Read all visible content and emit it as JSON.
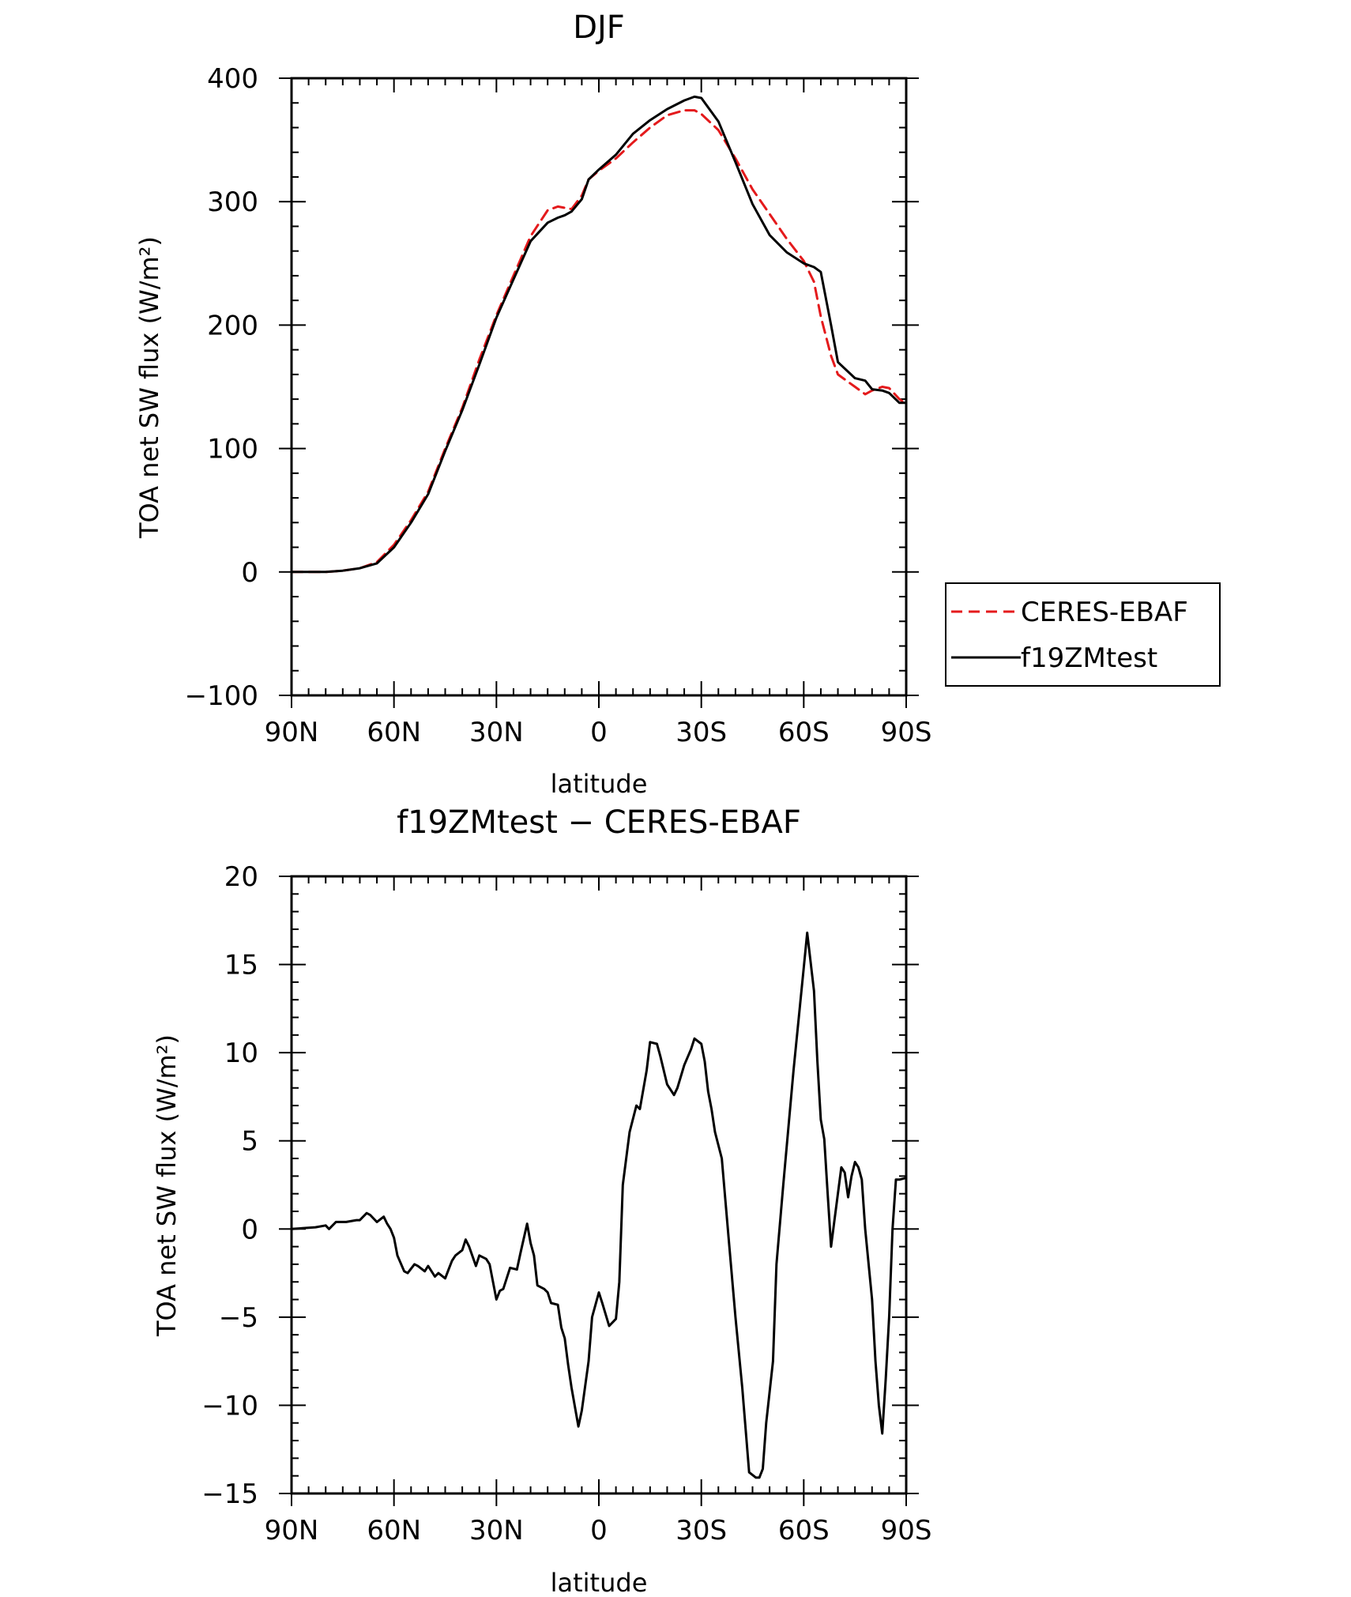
{
  "chart_data": [
    {
      "type": "line",
      "title": "DJF",
      "xlabel": "latitude",
      "ylabel": "TOA net SW flux (W/m²)",
      "xlim": [
        90,
        -90
      ],
      "ylim": [
        -100,
        400
      ],
      "x_ticks": [
        90,
        60,
        30,
        0,
        -30,
        -60,
        -90
      ],
      "x_tick_labels": [
        "90N",
        "60N",
        "30N",
        "0",
        "30S",
        "60S",
        "90S"
      ],
      "y_ticks": [
        -100,
        0,
        100,
        200,
        300,
        400
      ],
      "y_tick_labels": [
        "−100",
        "0",
        "100",
        "200",
        "300",
        "400"
      ],
      "legend": {
        "placement": "right-middle",
        "entries": [
          "CERES-EBAF",
          "f19ZMtest"
        ]
      },
      "series": [
        {
          "name": "CERES-EBAF",
          "color": "#e41a1c",
          "dash": true,
          "x": [
            90,
            85,
            80,
            75,
            70,
            65,
            60,
            55,
            50,
            45,
            40,
            35,
            30,
            25,
            20,
            15,
            12,
            10,
            8,
            5,
            3,
            0,
            -5,
            -10,
            -15,
            -20,
            -25,
            -28,
            -30,
            -35,
            -40,
            -45,
            -50,
            -55,
            -60,
            -63,
            -65,
            -68,
            -70,
            -75,
            -78,
            -80,
            -83,
            -85,
            -88,
            -90
          ],
          "values": [
            0,
            0,
            0,
            1,
            3,
            8,
            22,
            42,
            65,
            100,
            133,
            172,
            208,
            240,
            272,
            293,
            296,
            295,
            294,
            305,
            318,
            325,
            335,
            348,
            360,
            370,
            374,
            374,
            371,
            358,
            335,
            310,
            290,
            270,
            252,
            235,
            207,
            175,
            160,
            150,
            144,
            147,
            150,
            149,
            140,
            136
          ]
        },
        {
          "name": "f19ZMtest",
          "color": "#000000",
          "dash": false,
          "x": [
            90,
            85,
            80,
            75,
            70,
            65,
            60,
            55,
            50,
            45,
            40,
            35,
            30,
            25,
            20,
            15,
            12,
            10,
            8,
            5,
            3,
            0,
            -5,
            -10,
            -15,
            -20,
            -25,
            -28,
            -30,
            -35,
            -40,
            -45,
            -50,
            -55,
            -60,
            -63,
            -65,
            -68,
            -70,
            -75,
            -78,
            -80,
            -83,
            -85,
            -88,
            -90
          ],
          "values": [
            0,
            0,
            0,
            1,
            3,
            7,
            20,
            40,
            63,
            98,
            131,
            168,
            206,
            237,
            268,
            283,
            287,
            289,
            292,
            302,
            318,
            326,
            338,
            355,
            366,
            375,
            382,
            385,
            384,
            365,
            332,
            298,
            273,
            259,
            250,
            247,
            243,
            200,
            170,
            157,
            155,
            148,
            147,
            145,
            137,
            137
          ]
        }
      ]
    },
    {
      "type": "line",
      "title": "f19ZMtest − CERES-EBAF",
      "xlabel": "latitude",
      "ylabel": "TOA net SW flux (W/m²)",
      "xlim": [
        90,
        -90
      ],
      "ylim": [
        -15,
        20
      ],
      "x_ticks": [
        90,
        60,
        30,
        0,
        -30,
        -60,
        -90
      ],
      "x_tick_labels": [
        "90N",
        "60N",
        "30N",
        "0",
        "30S",
        "60S",
        "90S"
      ],
      "y_ticks": [
        -15,
        -10,
        -5,
        0,
        5,
        10,
        15,
        20
      ],
      "y_tick_labels": [
        "−15",
        "−10",
        "−5",
        "0",
        "5",
        "10",
        "15",
        "20"
      ],
      "series": [
        {
          "name": "f19ZMtest − CERES-EBAF",
          "color": "#000000",
          "dash": false,
          "x": [
            90,
            83,
            80,
            79,
            77,
            74,
            71,
            70,
            68,
            67,
            66,
            65,
            63,
            62,
            61,
            60,
            59,
            57,
            56,
            54,
            53,
            51,
            50,
            48,
            47,
            45,
            44,
            43,
            42,
            40,
            39,
            38,
            36,
            35,
            33,
            32,
            30,
            29,
            28,
            27,
            26,
            24,
            23,
            21,
            20,
            19,
            18,
            16,
            15,
            14,
            12,
            11,
            10,
            9,
            8,
            6,
            5,
            3,
            2,
            0,
            -1,
            -3,
            -5,
            -6,
            -7,
            -9,
            -11,
            -12,
            -14,
            -15,
            -17,
            -18,
            -20,
            -22,
            -23,
            -25,
            -27,
            -28,
            -30,
            -31,
            -32,
            -33,
            -34,
            -36,
            -38,
            -40,
            -42,
            -44,
            -46,
            -47,
            -48,
            -49,
            -51,
            -52,
            -54,
            -57,
            -60,
            -61,
            -63,
            -64,
            -65,
            -66,
            -67,
            -68,
            -69,
            -71,
            -72,
            -73,
            -74,
            -75,
            -76,
            -77,
            -78,
            -80,
            -81,
            -82,
            -83,
            -84,
            -85,
            -86,
            -87,
            -88,
            -90
          ],
          "values": [
            0,
            0.1,
            0.2,
            0,
            0.4,
            0.4,
            0.5,
            0.5,
            0.9,
            0.8,
            0.6,
            0.4,
            0.7,
            0.3,
            0,
            -0.5,
            -1.5,
            -2.4,
            -2.5,
            -2.0,
            -2.1,
            -2.4,
            -2.1,
            -2.7,
            -2.5,
            -2.8,
            -2.3,
            -1.8,
            -1.5,
            -1.2,
            -0.6,
            -1.0,
            -2.1,
            -1.5,
            -1.7,
            -2.0,
            -4.0,
            -3.5,
            -3.4,
            -2.8,
            -2.2,
            -2.3,
            -1.4,
            0.3,
            -0.8,
            -1.5,
            -3.2,
            -3.4,
            -3.6,
            -4.2,
            -4.3,
            -5.6,
            -6.2,
            -7.7,
            -9.0,
            -11.2,
            -10.3,
            -7.5,
            -5.0,
            -3.6,
            -4.2,
            -5.5,
            -5.1,
            -3.0,
            2.5,
            5.5,
            7.0,
            6.8,
            9.0,
            10.6,
            10.5,
            9.8,
            8.2,
            7.6,
            8.0,
            9.3,
            10.2,
            10.8,
            10.5,
            9.5,
            7.8,
            6.8,
            5.5,
            4.0,
            -0.5,
            -5.0,
            -9.0,
            -13.8,
            -14.1,
            -14.1,
            -13.6,
            -11.0,
            -7.5,
            -2.0,
            2.5,
            9.0,
            14.8,
            16.8,
            13.5,
            9.5,
            6.2,
            5.1,
            2.0,
            -1.0,
            0.5,
            3.5,
            3.2,
            1.8,
            3.0,
            3.8,
            3.5,
            2.8,
            0,
            -4.0,
            -7.5,
            -10.0,
            -11.6,
            -8.5,
            -5.0,
            0,
            2.8,
            2.8,
            2.9
          ]
        }
      ]
    }
  ]
}
